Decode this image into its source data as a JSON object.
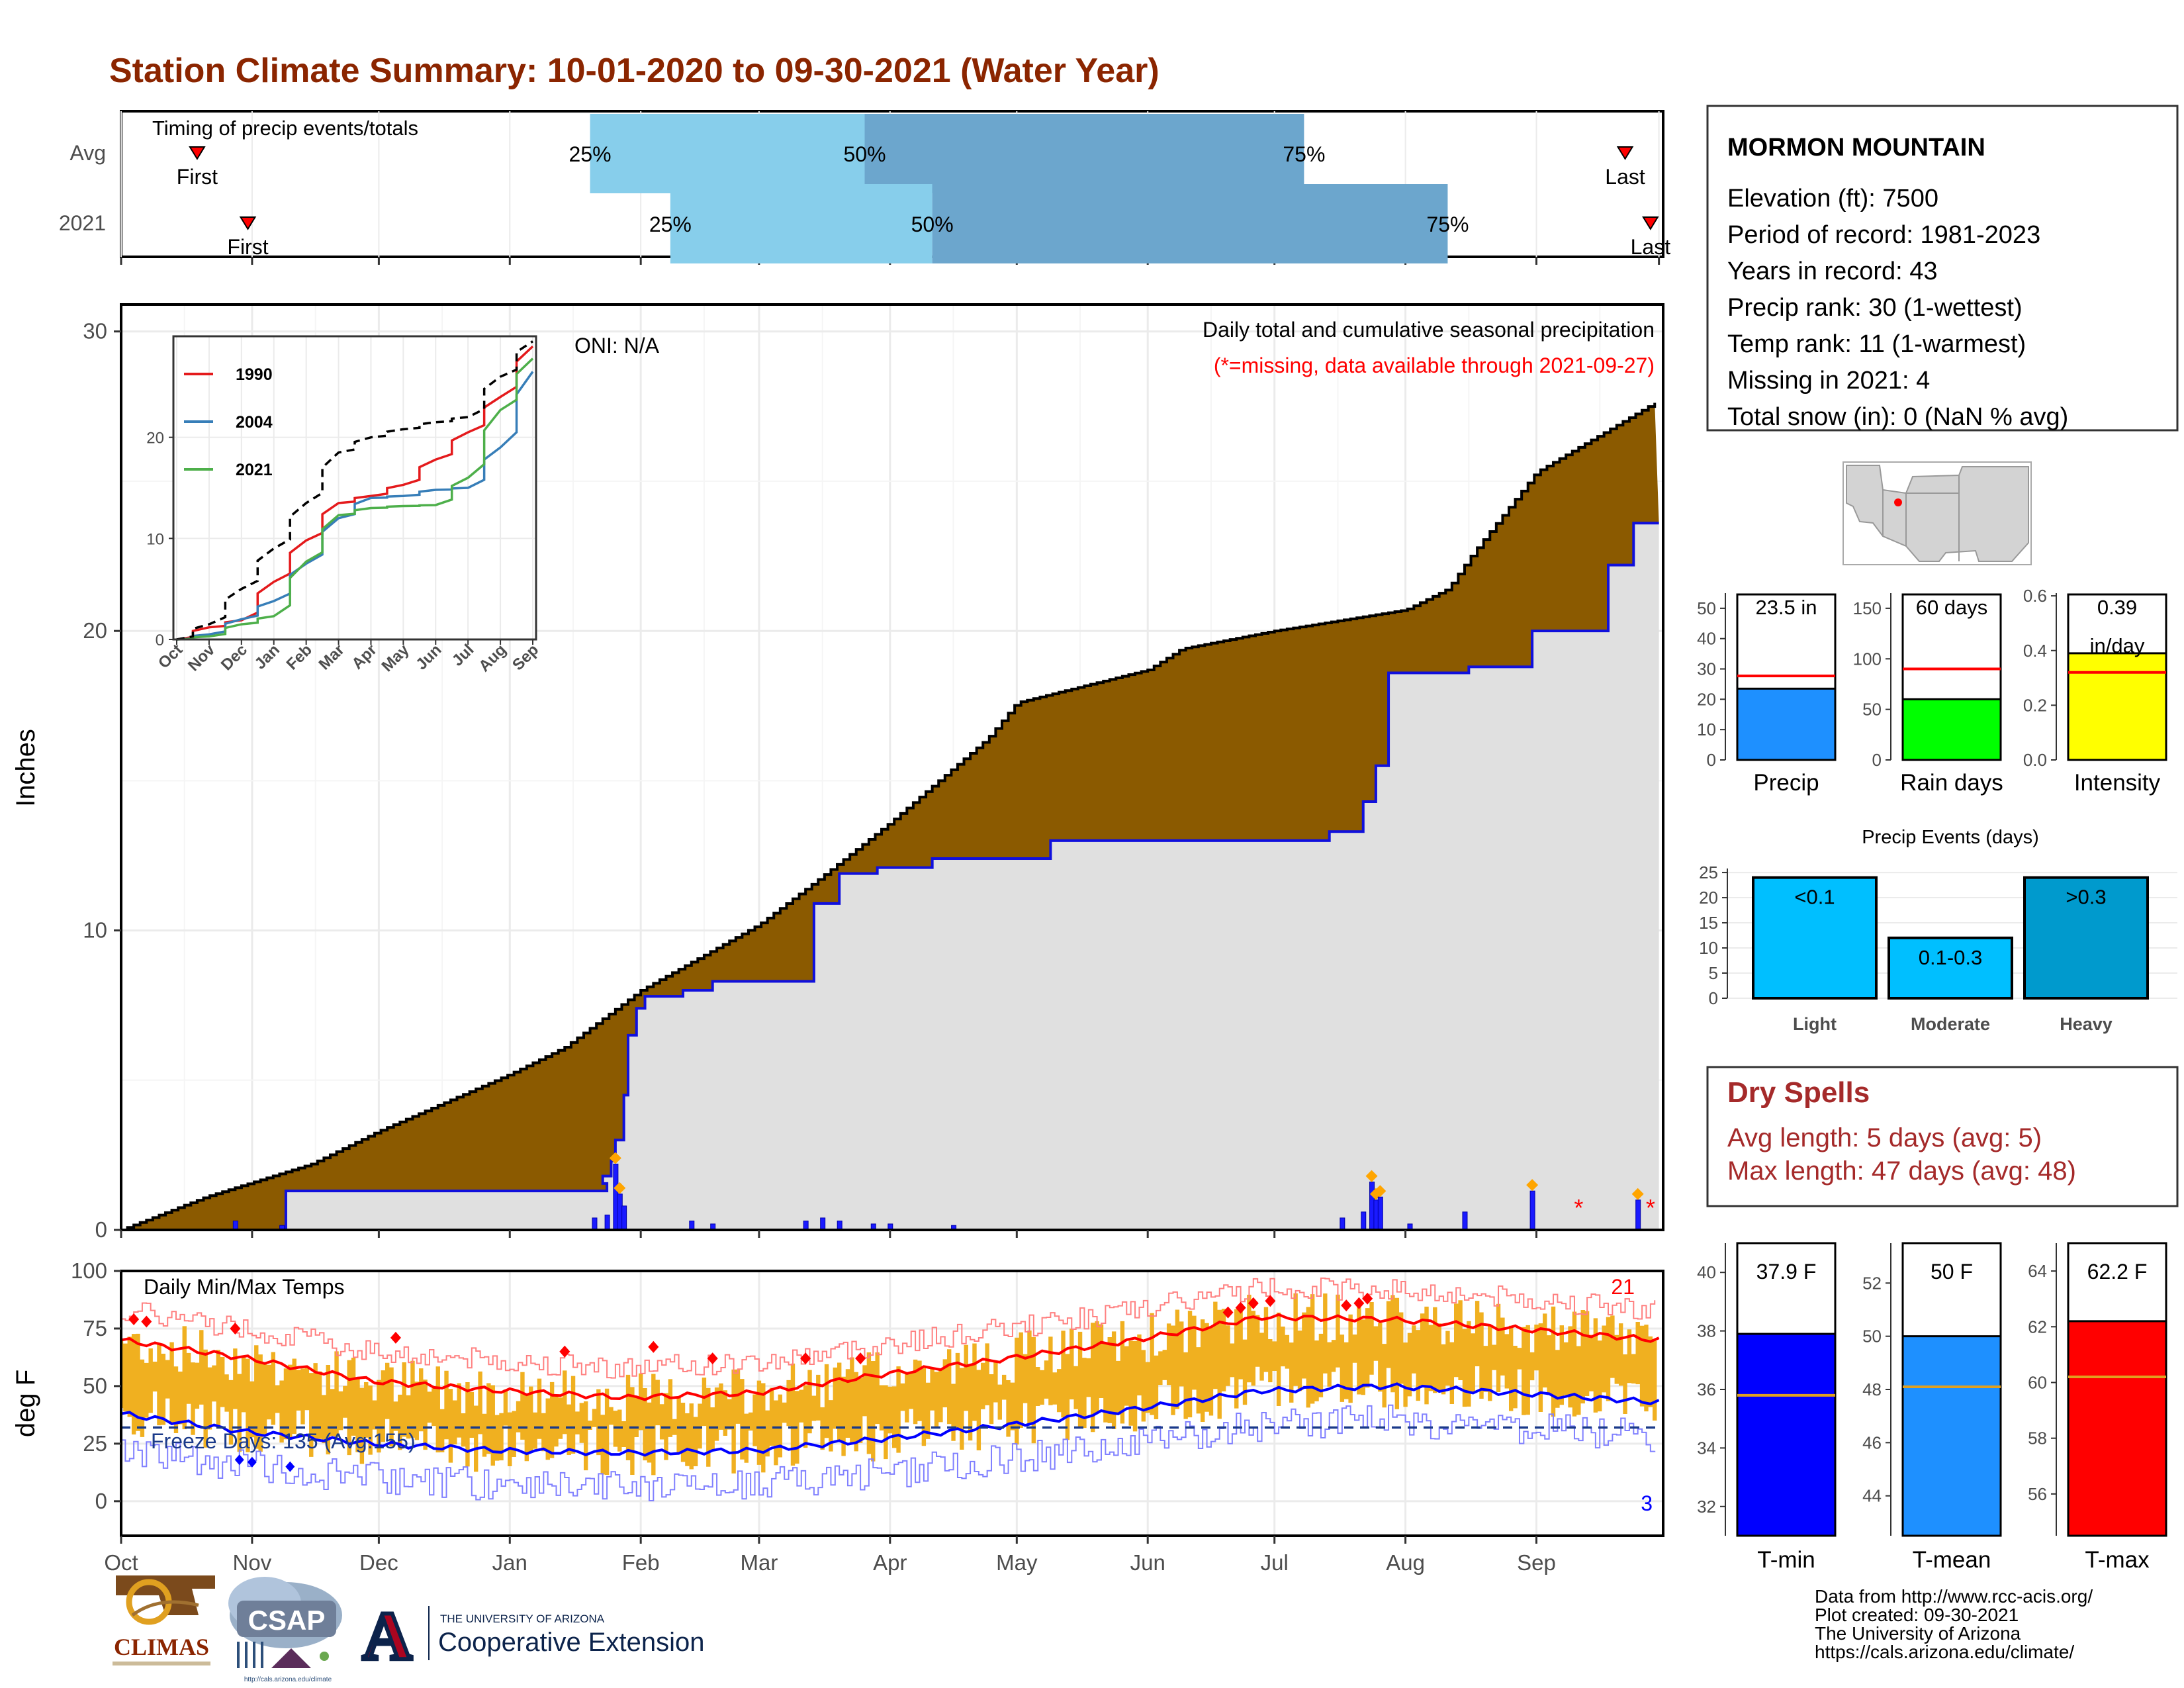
{
  "title": "Station Climate Summary: 10-01-2020 to 09-30-2021 (Water Year)",
  "colors": {
    "title": "#8B2500",
    "cum_fill": "#8B5A00",
    "cum_avg_line": "#000000",
    "cum_2021_line": "#1010dd",
    "daily_bar": "#1a1aff",
    "below_fill": "#e0e0e0",
    "tmax": "#ff0000",
    "tmin": "#0000ff",
    "temp_bar": "#f0b020",
    "q_light": "#87ceeb",
    "q_dark": "#6ca6cd",
    "precip_bar": "#1e90ff",
    "rain_bar": "#00ff00",
    "int_bar": "#ffff00",
    "light": "#00bfff",
    "moderate": "#00bfff",
    "heavy": "#009acd",
    "dry": "#a52a2a",
    "avg_line": "#ff0000"
  },
  "months": [
    "Oct",
    "Nov",
    "Dec",
    "Jan",
    "Feb",
    "Mar",
    "Apr",
    "May",
    "Jun",
    "Jul",
    "Aug",
    "Sep"
  ],
  "timing": {
    "label": "Timing of precip events/totals",
    "rows": [
      {
        "name": "Avg",
        "first_label": "First",
        "last_label": "Last",
        "q25_label": "25%",
        "q50_label": "50%",
        "q75_label": "75%",
        "first": 18,
        "q25": 111,
        "q50": 176,
        "q75": 280,
        "last": 356
      },
      {
        "name": "2021",
        "first_label": "First",
        "last_label": "Last",
        "q25_label": "25%",
        "q50_label": "50%",
        "q75_label": "75%",
        "first": 30,
        "q25": 130,
        "q50": 192,
        "q75": 314,
        "last": 362
      }
    ]
  },
  "main": {
    "ylabel": "Inches",
    "oni": "ONI: N/A",
    "caption": "Daily total and cumulative seasonal precipitation",
    "missing_note": "(*=missing, data available through 2021-09-27)",
    "yticks": [
      "0",
      "10",
      "20",
      "30"
    ]
  },
  "chart_data": [
    {
      "type": "area",
      "title": "Daily total and cumulative seasonal precipitation",
      "ylabel": "Inches",
      "ylim": [
        0,
        30
      ],
      "x_unit": "day of water year (0 = Oct 1)",
      "avg_cumulative": {
        "x": [
          0,
          20,
          45,
          61,
          92,
          105,
          123,
          151,
          165,
          182,
          205,
          212,
          243,
          251,
          273,
          282,
          304,
          314,
          320,
          335,
          364
        ],
        "y": [
          0,
          1.1,
          2.2,
          3.3,
          5.2,
          6.1,
          8.0,
          10.2,
          11.7,
          13.6,
          16.4,
          17.6,
          18.7,
          19.4,
          20.0,
          20.2,
          20.7,
          21.4,
          22.6,
          25.3,
          27.7
        ]
      },
      "cumulative_2021": {
        "x": [
          0,
          25,
          39,
          115,
          114,
          116,
          117,
          119,
          120,
          122,
          124,
          133,
          140,
          164,
          170,
          179,
          192,
          197,
          220,
          233,
          244,
          270,
          286,
          294,
          297,
          300,
          319,
          334,
          352,
          358,
          364
        ],
        "y": [
          0,
          0,
          1.3,
          1.55,
          1.8,
          2.3,
          3.0,
          4.5,
          6.5,
          7.4,
          7.8,
          8.0,
          8.3,
          10.9,
          11.9,
          12.1,
          12.4,
          12.4,
          13.0,
          13.0,
          13.0,
          13.0,
          13.3,
          14.3,
          15.5,
          18.6,
          18.8,
          20.0,
          22.2,
          23.6,
          23.6
        ]
      },
      "daily_bars": [
        {
          "x": 27,
          "y": 0.3
        },
        {
          "x": 38,
          "y": 0.15
        },
        {
          "x": 112,
          "y": 0.4
        },
        {
          "x": 115,
          "y": 0.5
        },
        {
          "x": 117,
          "y": 2.2
        },
        {
          "x": 118,
          "y": 1.2
        },
        {
          "x": 119,
          "y": 0.8
        },
        {
          "x": 135,
          "y": 0.3
        },
        {
          "x": 140,
          "y": 0.2
        },
        {
          "x": 162,
          "y": 0.3
        },
        {
          "x": 166,
          "y": 0.4
        },
        {
          "x": 170,
          "y": 0.3
        },
        {
          "x": 178,
          "y": 0.2
        },
        {
          "x": 182,
          "y": 0.2
        },
        {
          "x": 197,
          "y": 0.15
        },
        {
          "x": 289,
          "y": 0.4
        },
        {
          "x": 294,
          "y": 0.6
        },
        {
          "x": 296,
          "y": 1.6
        },
        {
          "x": 297,
          "y": 1.0
        },
        {
          "x": 298,
          "y": 1.1
        },
        {
          "x": 305,
          "y": 0.2
        },
        {
          "x": 318,
          "y": 0.6
        },
        {
          "x": 334,
          "y": 1.3
        },
        {
          "x": 359,
          "y": 1.0
        }
      ],
      "missing": [
        {
          "x": 345,
          "y": 1.0
        },
        {
          "x": 362,
          "y": 1.0
        }
      ]
    },
    {
      "type": "line",
      "title": "",
      "xlim_labels": [
        "Oct",
        "Nov",
        "Dec",
        "Jan",
        "Feb",
        "Mar",
        "Apr",
        "May",
        "Jun",
        "Jul",
        "Aug",
        "Sep"
      ],
      "yticks": [
        "0",
        "10",
        "20"
      ],
      "ylim": [
        0,
        30
      ],
      "series": [
        {
          "name": "1990",
          "color": "#e41a1c",
          "x": [
            0,
            1,
            2,
            3,
            4,
            5,
            6,
            7,
            8,
            9,
            10,
            11
          ],
          "y": [
            0,
            1.2,
            1.9,
            5.7,
            9.8,
            13.5,
            14.2,
            15.3,
            17.8,
            20.5,
            24.0,
            29.0
          ]
        },
        {
          "name": "2004",
          "color": "#377eb8",
          "x": [
            0,
            1,
            2,
            3,
            4,
            5,
            6,
            7,
            8,
            9,
            10,
            11
          ],
          "y": [
            0,
            0.5,
            2.0,
            3.8,
            7.5,
            12.0,
            14.0,
            14.2,
            14.8,
            15.0,
            19.0,
            26.5
          ]
        },
        {
          "name": "2021",
          "color": "#4daf4a",
          "x": [
            0,
            1,
            2,
            3,
            4,
            5,
            6,
            7,
            8,
            9,
            10,
            11
          ],
          "y": [
            0,
            0.3,
            1.5,
            2.3,
            7.7,
            12.3,
            13.0,
            13.2,
            13.3,
            16.0,
            22.7,
            27.8
          ]
        },
        {
          "name": "",
          "color": "#000000",
          "dashed": true,
          "x": [
            0,
            1,
            2,
            3,
            4,
            5,
            6,
            7,
            8,
            9,
            10,
            11
          ],
          "y": [
            0,
            1.5,
            5.0,
            9.0,
            13.5,
            18.5,
            20.0,
            20.8,
            21.5,
            22.0,
            26.0,
            29.5
          ]
        }
      ]
    },
    {
      "type": "bar",
      "title": "",
      "categories": [
        "Precip",
        "Rain days",
        "Intensity"
      ],
      "values": [
        23.5,
        60,
        0.39
      ],
      "labels": [
        "23.5 in",
        "60 days",
        "0.39 in/day"
      ],
      "averages": [
        27.7,
        90,
        0.32
      ]
    },
    {
      "type": "bar",
      "title": "Precip Events (days)",
      "categories": [
        "Light",
        "Moderate",
        "Heavy"
      ],
      "labels": [
        "<0.1",
        "0.1-0.3",
        ">0.3"
      ],
      "values": [
        24,
        12,
        24
      ],
      "ylim": [
        0,
        25
      ]
    },
    {
      "type": "line",
      "title": "Daily Min/Max Temps",
      "ylabel": "deg F",
      "ylim": [
        -15,
        100
      ],
      "tmax_avg": {
        "x": [
          0,
          30,
          60,
          90,
          120,
          150,
          180,
          210,
          240,
          270,
          300,
          330,
          364
        ],
        "y": [
          70,
          62,
          52,
          48,
          45,
          47,
          55,
          62,
          70,
          80,
          79,
          75,
          70
        ]
      },
      "tmin_avg": {
        "x": [
          0,
          30,
          60,
          90,
          120,
          150,
          180,
          210,
          240,
          270,
          300,
          330,
          364
        ],
        "y": [
          38,
          30,
          25,
          22,
          21,
          22,
          27,
          33,
          40,
          48,
          50,
          47,
          43
        ]
      },
      "freeze_line": 32,
      "freeze_label": "Freeze Days: 135 (Avg:155)",
      "records_high": 21,
      "records_low": 3
    },
    {
      "type": "bar",
      "title": "",
      "categories": [
        "T-min",
        "T-mean",
        "T-max"
      ],
      "values": [
        37.9,
        50,
        62.2
      ],
      "labels": [
        "37.9 F",
        "50 F",
        "62.2 F"
      ],
      "averages": [
        35.8,
        48.1,
        60.2
      ],
      "ylims": [
        [
          31,
          41
        ],
        [
          42.5,
          53.5
        ],
        [
          54.5,
          65
        ]
      ]
    }
  ],
  "station": {
    "name": "MORMON MOUNTAIN",
    "lines": [
      "Elevation (ft): 7500",
      "Period of record: 1981-2023",
      "Years in record: 43",
      "Precip rank: 30 (1-wettest)",
      "Temp rank: 11 (1-warmest)",
      "Missing in 2021: 4",
      "Total snow (in): 0 (NaN % avg)"
    ]
  },
  "inset_legend": [
    "1990",
    "2004",
    "2021"
  ],
  "summary_bars": {
    "precip": {
      "label": "Precip",
      "value_label": "23.5 in",
      "yticks": [
        "0",
        "10",
        "20",
        "30",
        "40",
        "50"
      ]
    },
    "rain": {
      "label": "Rain days",
      "value_label": "60 days",
      "yticks": [
        "0",
        "50",
        "100",
        "150"
      ]
    },
    "intensity": {
      "label": "Intensity",
      "value_label": "0.39",
      "value_unit": "in/day",
      "yticks": [
        "0.0",
        "0.2",
        "0.4",
        "0.6"
      ]
    }
  },
  "events": {
    "title": "Precip Events (days)",
    "yticks": [
      "0",
      "5",
      "10",
      "15",
      "20",
      "25"
    ],
    "cats": [
      "Light",
      "Moderate",
      "Heavy"
    ],
    "labels": [
      "<0.1",
      "0.1-0.3",
      ">0.3"
    ]
  },
  "dry": {
    "title": "Dry Spells",
    "avg": "Avg length: 5 days (avg: 5)",
    "max": "Max length: 47 days (avg: 48)"
  },
  "temp": {
    "title": "Daily Min/Max Temps",
    "ylabel": "deg F",
    "freeze": "Freeze Days: 135 (Avg:155)",
    "hi": "21",
    "lo": "3",
    "yticks": [
      "0",
      "25",
      "50",
      "75",
      "100"
    ]
  },
  "tbars": {
    "tmin": {
      "label": "T-min",
      "value_label": "37.9 F",
      "yticks": [
        "32",
        "34",
        "36",
        "38",
        "40"
      ]
    },
    "tmean": {
      "label": "T-mean",
      "value_label": "50 F",
      "yticks": [
        "44",
        "46",
        "48",
        "50",
        "52"
      ]
    },
    "tmax": {
      "label": "T-max",
      "value_label": "62.2 F",
      "yticks": [
        "56",
        "58",
        "60",
        "62",
        "64"
      ]
    }
  },
  "logos": {
    "climas": "CLIMAS",
    "csap": "CSAP",
    "csap_url": "http://cals.arizona.edu/climate",
    "ua_top": "THE UNIVERSITY OF ARIZONA",
    "ua_bottom": "Cooperative Extension",
    "ua_letter": "A"
  },
  "credits": [
    "Data from http://www.rcc-acis.org/",
    "Plot created: 09-30-2021",
    "The University of Arizona",
    "https://cals.arizona.edu/climate/"
  ]
}
